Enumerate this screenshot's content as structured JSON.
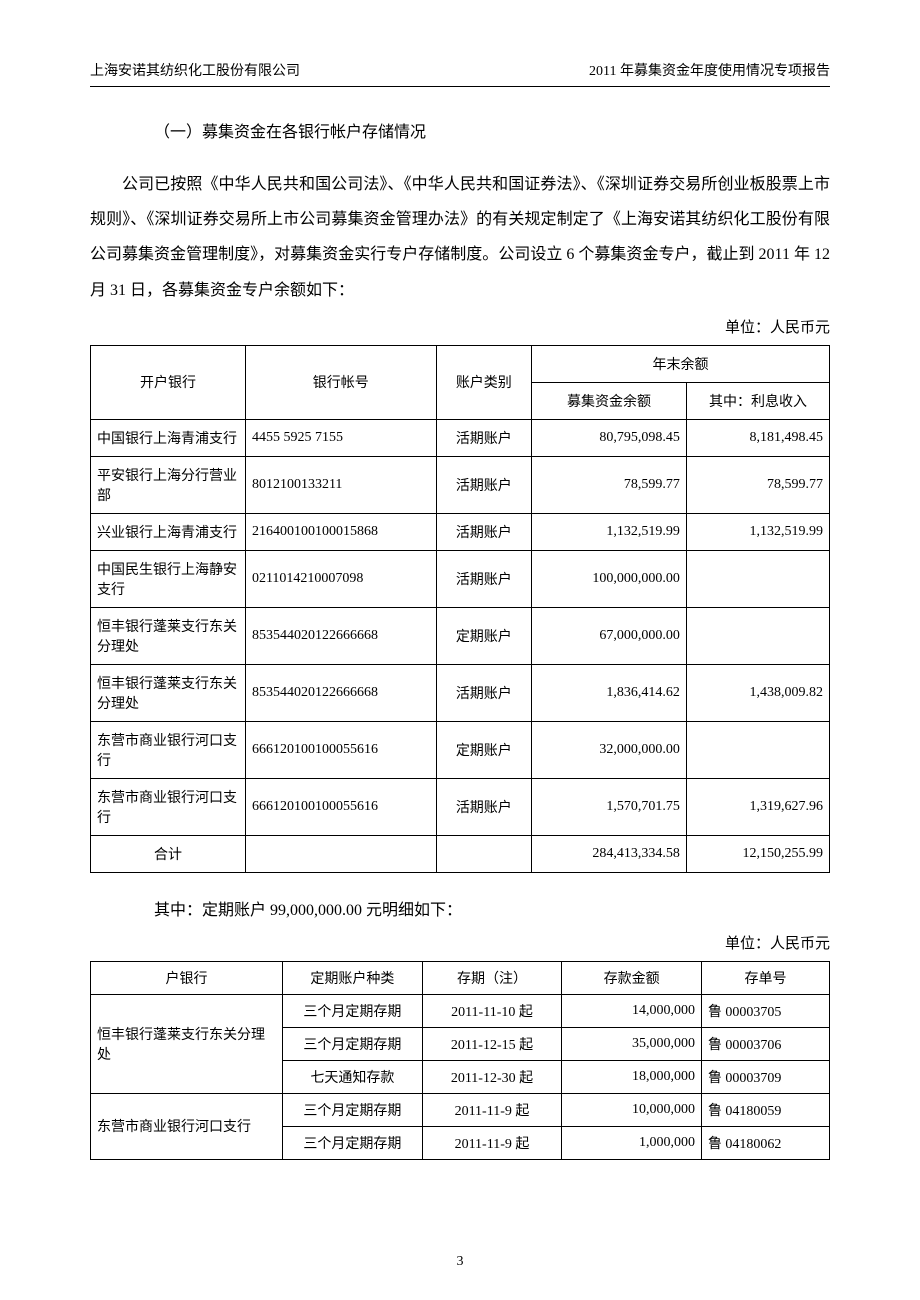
{
  "header": {
    "left": "上海安诺其纺织化工股份有限公司",
    "right": "2011 年募集资金年度使用情况专项报告"
  },
  "section_title": "（一）募集资金在各银行帐户存储情况",
  "paragraph": "公司已按照《中华人民共和国公司法》、《中华人民共和国证券法》、《深圳证券交易所创业板股票上市规则》、《深圳证券交易所上市公司募集资金管理办法》的有关规定制定了《上海安诺其纺织化工股份有限公司募集资金管理制度》，对募集资金实行专户存储制度。公司设立 6 个募集资金专户，截止到 2011 年 12 月 31 日，各募集资金专户余额如下：",
  "unit": "单位：人民币元",
  "table1": {
    "headers": {
      "bank": "开户银行",
      "account_no": "银行帐号",
      "account_type": "账户类别",
      "year_end_balance": "年末余额",
      "fund_balance": "募集资金余额",
      "interest": "其中：利息收入"
    },
    "rows": [
      {
        "bank": "中国银行上海青浦支行",
        "acc": "4455 5925 7155",
        "type": "活期账户",
        "bal": "80,795,098.45",
        "int": "8,181,498.45"
      },
      {
        "bank": "平安银行上海分行营业部",
        "acc": "8012100133211",
        "type": "活期账户",
        "bal": "78,599.77",
        "int": "78,599.77"
      },
      {
        "bank": "兴业银行上海青浦支行",
        "acc": "216400100100015868",
        "type": "活期账户",
        "bal": "1,132,519.99",
        "int": "1,132,519.99"
      },
      {
        "bank": "中国民生银行上海静安支行",
        "acc": "0211014210007098",
        "type": "活期账户",
        "bal": "100,000,000.00",
        "int": ""
      },
      {
        "bank": "恒丰银行蓬莱支行东关分理处",
        "acc": "853544020122666668",
        "type": "定期账户",
        "bal": "67,000,000.00",
        "int": ""
      },
      {
        "bank": "恒丰银行蓬莱支行东关分理处",
        "acc": "853544020122666668",
        "type": "活期账户",
        "bal": "1,836,414.62",
        "int": "1,438,009.82"
      },
      {
        "bank": "东营市商业银行河口支行",
        "acc": "666120100100055616",
        "type": "定期账户",
        "bal": "32,000,000.00",
        "int": ""
      },
      {
        "bank": "东营市商业银行河口支行",
        "acc": "666120100100055616",
        "type": "活期账户",
        "bal": "1,570,701.75",
        "int": "1,319,627.96"
      }
    ],
    "total": {
      "label": "合计",
      "bal": "284,413,334.58",
      "int": "12,150,255.99"
    }
  },
  "sub_title": "其中：定期账户 99,000,000.00 元明细如下：",
  "table2": {
    "headers": {
      "bank": "户银行",
      "type": "定期账户种类",
      "term": "存期（注）",
      "amount": "存款金额",
      "slip": "存单号"
    },
    "groups": [
      {
        "bank": "恒丰银行蓬莱支行东关分理处",
        "rows": [
          {
            "type": "三个月定期存期",
            "term": "2011-11-10 起",
            "amount": "14,000,000",
            "slip": "鲁  00003705"
          },
          {
            "type": "三个月定期存期",
            "term": "2011-12-15 起",
            "amount": "35,000,000",
            "slip": "鲁  00003706"
          },
          {
            "type": "七天通知存款",
            "term": "2011-12-30 起",
            "amount": "18,000,000",
            "slip": "鲁  00003709"
          }
        ]
      },
      {
        "bank": "东营市商业银行河口支行",
        "rows": [
          {
            "type": "三个月定期存期",
            "term": "2011-11-9 起",
            "amount": "10,000,000",
            "slip": "鲁  04180059"
          },
          {
            "type": "三个月定期存期",
            "term": "2011-11-9 起",
            "amount": "1,000,000",
            "slip": "鲁  04180062"
          }
        ]
      }
    ]
  },
  "page_number": "3"
}
